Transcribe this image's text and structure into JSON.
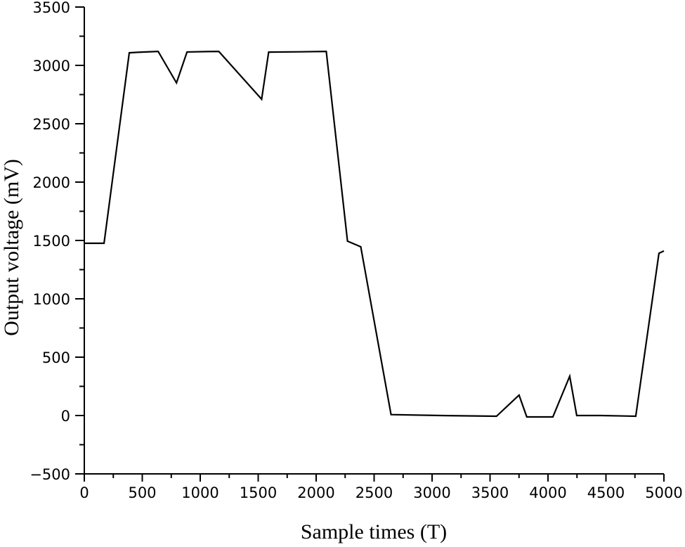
{
  "chart_data": {
    "type": "line",
    "title": "",
    "xlabel": "Sample times (T)",
    "ylabel": "Output voltage (mV)",
    "xlim": [
      0,
      5000
    ],
    "ylim": [
      -500,
      3500
    ],
    "xticks": [
      0,
      500,
      1000,
      1500,
      2000,
      2500,
      3000,
      3500,
      4000,
      4500,
      5000
    ],
    "yticks": [
      -500,
      0,
      500,
      1000,
      1500,
      2000,
      2500,
      3000,
      3500
    ],
    "xtick_labels": [
      "0",
      "500",
      "1000",
      "1500",
      "2000",
      "2500",
      "3000",
      "3500",
      "4000",
      "4500",
      "5000"
    ],
    "ytick_labels": [
      "−500",
      "0",
      "500",
      "1000",
      "1500",
      "2000",
      "2500",
      "3000",
      "3500"
    ],
    "grid": false,
    "legend": null,
    "series": [
      {
        "name": "Output voltage",
        "color": "#000000",
        "x": [
          0,
          170,
          388,
          460,
          637,
          795,
          886,
          1050,
          1160,
          1530,
          1590,
          1860,
          2087,
          2270,
          2385,
          2646,
          3077,
          3556,
          3750,
          3817,
          4042,
          4187,
          4248,
          4455,
          4757,
          4957,
          5000
        ],
        "y": [
          1476,
          1476,
          3108,
          3112,
          3120,
          2850,
          3115,
          3118,
          3120,
          2710,
          3114,
          3116,
          3120,
          1494,
          1446,
          8,
          0,
          -6,
          175,
          -12,
          -12,
          337,
          0,
          0,
          -6,
          1390,
          1410
        ]
      }
    ]
  }
}
